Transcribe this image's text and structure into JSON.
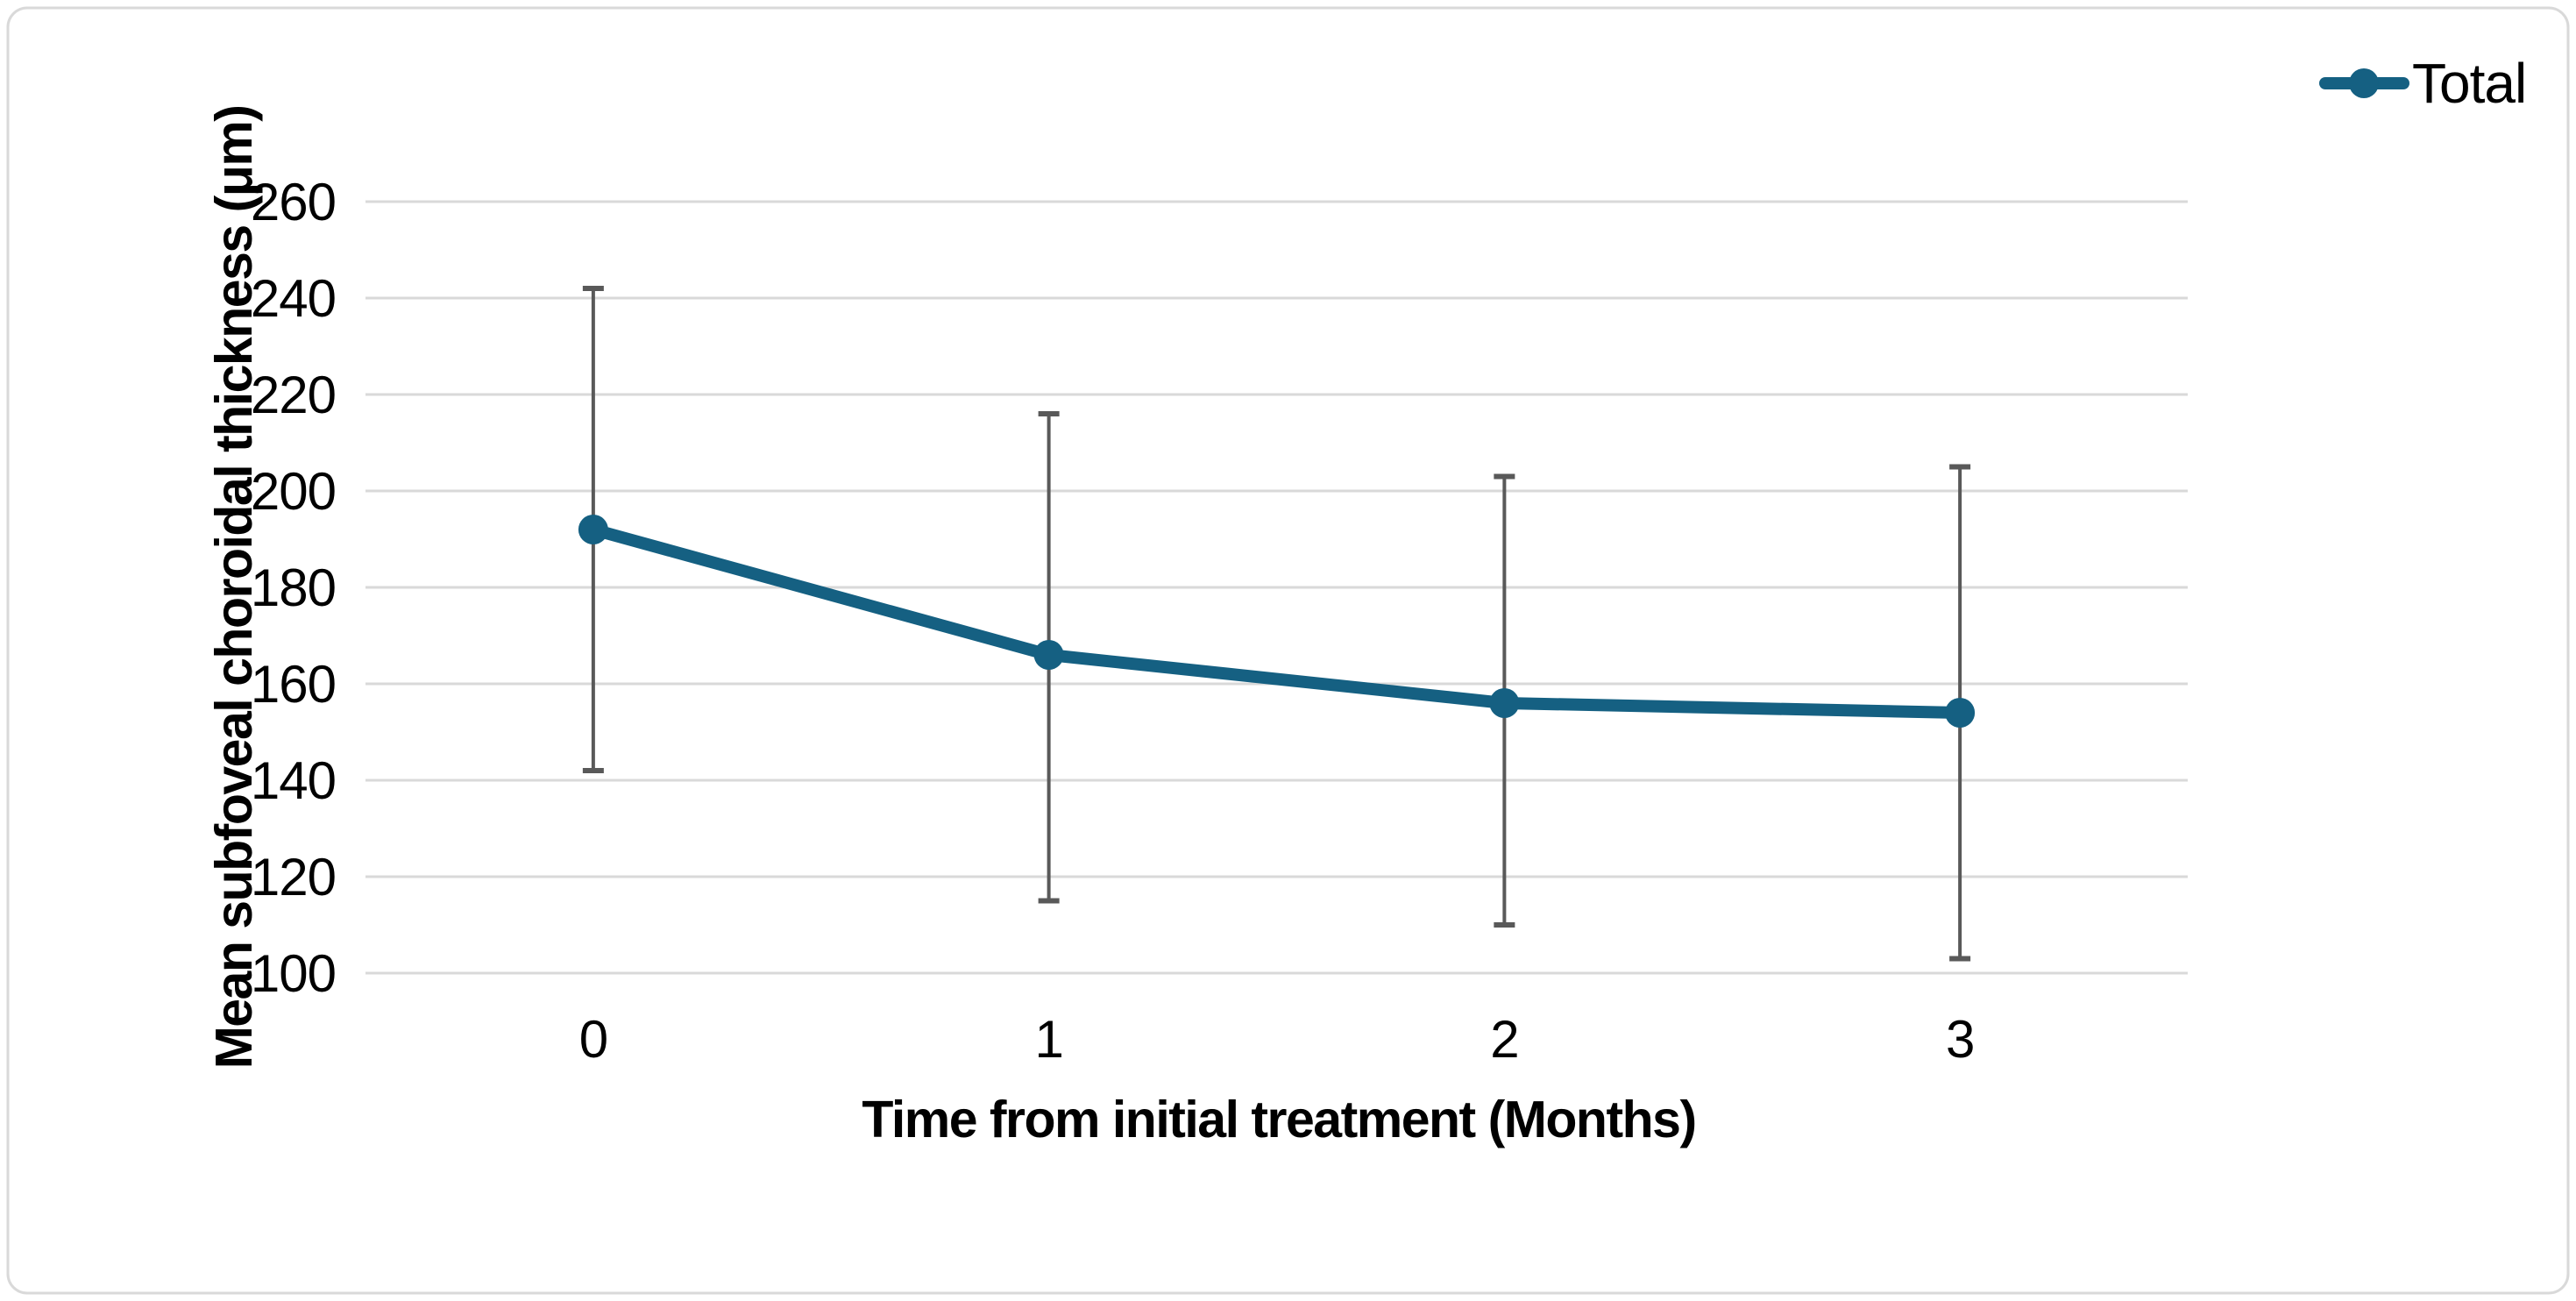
{
  "chart_data": {
    "type": "line",
    "title": "",
    "categories": [
      "0",
      "1",
      "2",
      "3"
    ],
    "series": [
      {
        "name": "Total",
        "values": [
          192,
          166,
          156,
          154
        ],
        "error_upper": [
          242,
          216,
          203,
          205
        ],
        "error_lower": [
          142,
          115,
          110,
          103
        ]
      }
    ],
    "xlabel": "Time from initial treatment (Months)",
    "ylabel": "Mean subfoveal choroidal thickness (μm)",
    "ylim": [
      100,
      260
    ],
    "yticks": [
      100,
      120,
      140,
      160,
      180,
      200,
      220,
      240,
      260
    ],
    "grid": "horizontal",
    "legend_position": "top-right",
    "legend_label": "Total"
  },
  "colors": {
    "series_line": "#156082",
    "error_bar": "#595959",
    "gridline": "#D9D9D9",
    "frame_border": "#D9D9D9",
    "text": "#000000",
    "background": "#FFFFFF"
  }
}
